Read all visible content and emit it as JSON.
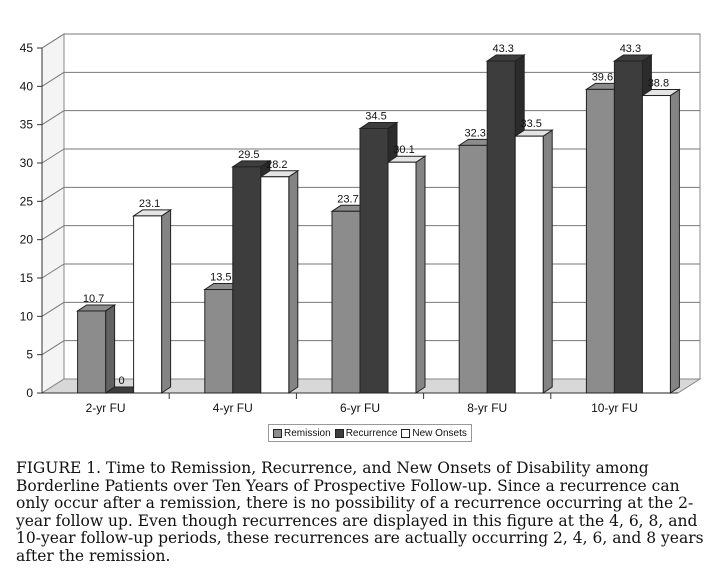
{
  "chart_data": {
    "type": "bar",
    "categories": [
      "2-yr FU",
      "4-yr FU",
      "6-yr FU",
      "8-yr FU",
      "10-yr FU"
    ],
    "series": [
      {
        "name": "Remission",
        "values": [
          10.7,
          13.5,
          23.7,
          32.3,
          39.6
        ],
        "labels": [
          "10.7",
          "13.5",
          "23.7",
          "32.3",
          "39.6"
        ],
        "color": "#8c8c8c"
      },
      {
        "name": "Recurrence",
        "values": [
          0,
          29.5,
          34.5,
          43.3,
          43.3
        ],
        "labels": [
          "0",
          "29.5",
          "34.5",
          "43.3",
          "43.3"
        ],
        "color": "#3d3d3d"
      },
      {
        "name": "New Onsets",
        "values": [
          23.1,
          28.2,
          30.1,
          33.5,
          38.8
        ],
        "labels": [
          "23.1",
          "28.2",
          "30.1",
          "33.5",
          "38.8"
        ],
        "color": "#ffffff"
      }
    ],
    "yticks": [
      "0",
      "5",
      "10",
      "15",
      "20",
      "25",
      "30",
      "35",
      "40",
      "45"
    ],
    "ylim": [
      0,
      45
    ],
    "grid": true,
    "legend_position": "bottom",
    "style": "3d"
  },
  "caption": "FIGURE 1. Time to Remission, Recurrence, and New Onsets of Disability among Borderline Patients over Ten Years of Prospective Follow-up. Since a recurrence can only occur after a remission, there is no possibility of a recurrence occurring at the 2-year follow up. Even though recurrences are displayed in this figure at the 4, 6, 8, and 10-year follow-up periods, these recurrences are actually occurring 2, 4, 6, and 8 years after the remission."
}
